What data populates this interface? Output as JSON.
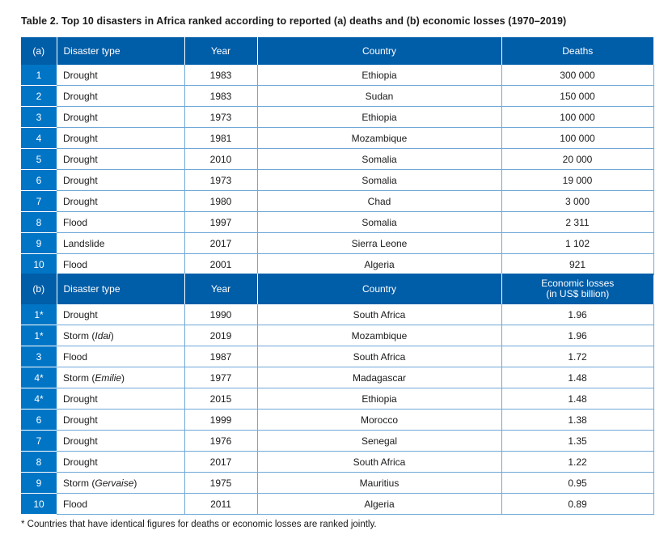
{
  "title": "Table 2. Top 10 disasters in Africa ranked according to reported (a) deaths and (b) economic losses (1970–2019)",
  "table_a": {
    "headers": [
      "(a)",
      "Disaster type",
      "Year",
      "Country",
      "Deaths"
    ],
    "rows": [
      {
        "rank": "1",
        "type": "Drought",
        "name": "",
        "year": "1983",
        "country": "Ethiopia",
        "value": "300 000"
      },
      {
        "rank": "2",
        "type": "Drought",
        "name": "",
        "year": "1983",
        "country": "Sudan",
        "value": "150 000"
      },
      {
        "rank": "3",
        "type": "Drought",
        "name": "",
        "year": "1973",
        "country": "Ethiopia",
        "value": "100 000"
      },
      {
        "rank": "4",
        "type": "Drought",
        "name": "",
        "year": "1981",
        "country": "Mozambique",
        "value": "100 000"
      },
      {
        "rank": "5",
        "type": "Drought",
        "name": "",
        "year": "2010",
        "country": "Somalia",
        "value": "20 000"
      },
      {
        "rank": "6",
        "type": "Drought",
        "name": "",
        "year": "1973",
        "country": "Somalia",
        "value": "19 000"
      },
      {
        "rank": "7",
        "type": "Drought",
        "name": "",
        "year": "1980",
        "country": "Chad",
        "value": "3 000"
      },
      {
        "rank": "8",
        "type": "Flood",
        "name": "",
        "year": "1997",
        "country": "Somalia",
        "value": "2 311"
      },
      {
        "rank": "9",
        "type": "Landslide",
        "name": "",
        "year": "2017",
        "country": "Sierra Leone",
        "value": "1 102"
      },
      {
        "rank": "10",
        "type": "Flood",
        "name": "",
        "year": "2001",
        "country": "Algeria",
        "value": "921"
      }
    ]
  },
  "table_b": {
    "headers": [
      "(b)",
      "Disaster type",
      "Year",
      "Country",
      "Economic losses",
      "(in US$ billion)"
    ],
    "rows": [
      {
        "rank": "1*",
        "type": "Drought",
        "name": "",
        "year": "1990",
        "country": "South Africa",
        "value": "1.96"
      },
      {
        "rank": "1*",
        "type": "Storm",
        "name": "Idai",
        "year": "2019",
        "country": "Mozambique",
        "value": "1.96"
      },
      {
        "rank": "3",
        "type": "Flood",
        "name": "",
        "year": "1987",
        "country": "South Africa",
        "value": "1.72"
      },
      {
        "rank": "4*",
        "type": "Storm",
        "name": "Emilie",
        "year": "1977",
        "country": "Madagascar",
        "value": "1.48"
      },
      {
        "rank": "4*",
        "type": "Drought",
        "name": "",
        "year": "2015",
        "country": "Ethiopia",
        "value": "1.48"
      },
      {
        "rank": "6",
        "type": "Drought",
        "name": "",
        "year": "1999",
        "country": "Morocco",
        "value": "1.38"
      },
      {
        "rank": "7",
        "type": "Drought",
        "name": "",
        "year": "1976",
        "country": "Senegal",
        "value": "1.35"
      },
      {
        "rank": "8",
        "type": "Drought",
        "name": "",
        "year": "2017",
        "country": "South Africa",
        "value": "1.22"
      },
      {
        "rank": "9",
        "type": "Storm",
        "name": "Gervaise",
        "year": "1975",
        "country": "Mauritius",
        "value": "0.95"
      },
      {
        "rank": "10",
        "type": "Flood",
        "name": "",
        "year": "2011",
        "country": "Algeria",
        "value": "0.89"
      }
    ]
  },
  "footnote": "* Countries that have identical figures for deaths or economic losses are ranked jointly."
}
